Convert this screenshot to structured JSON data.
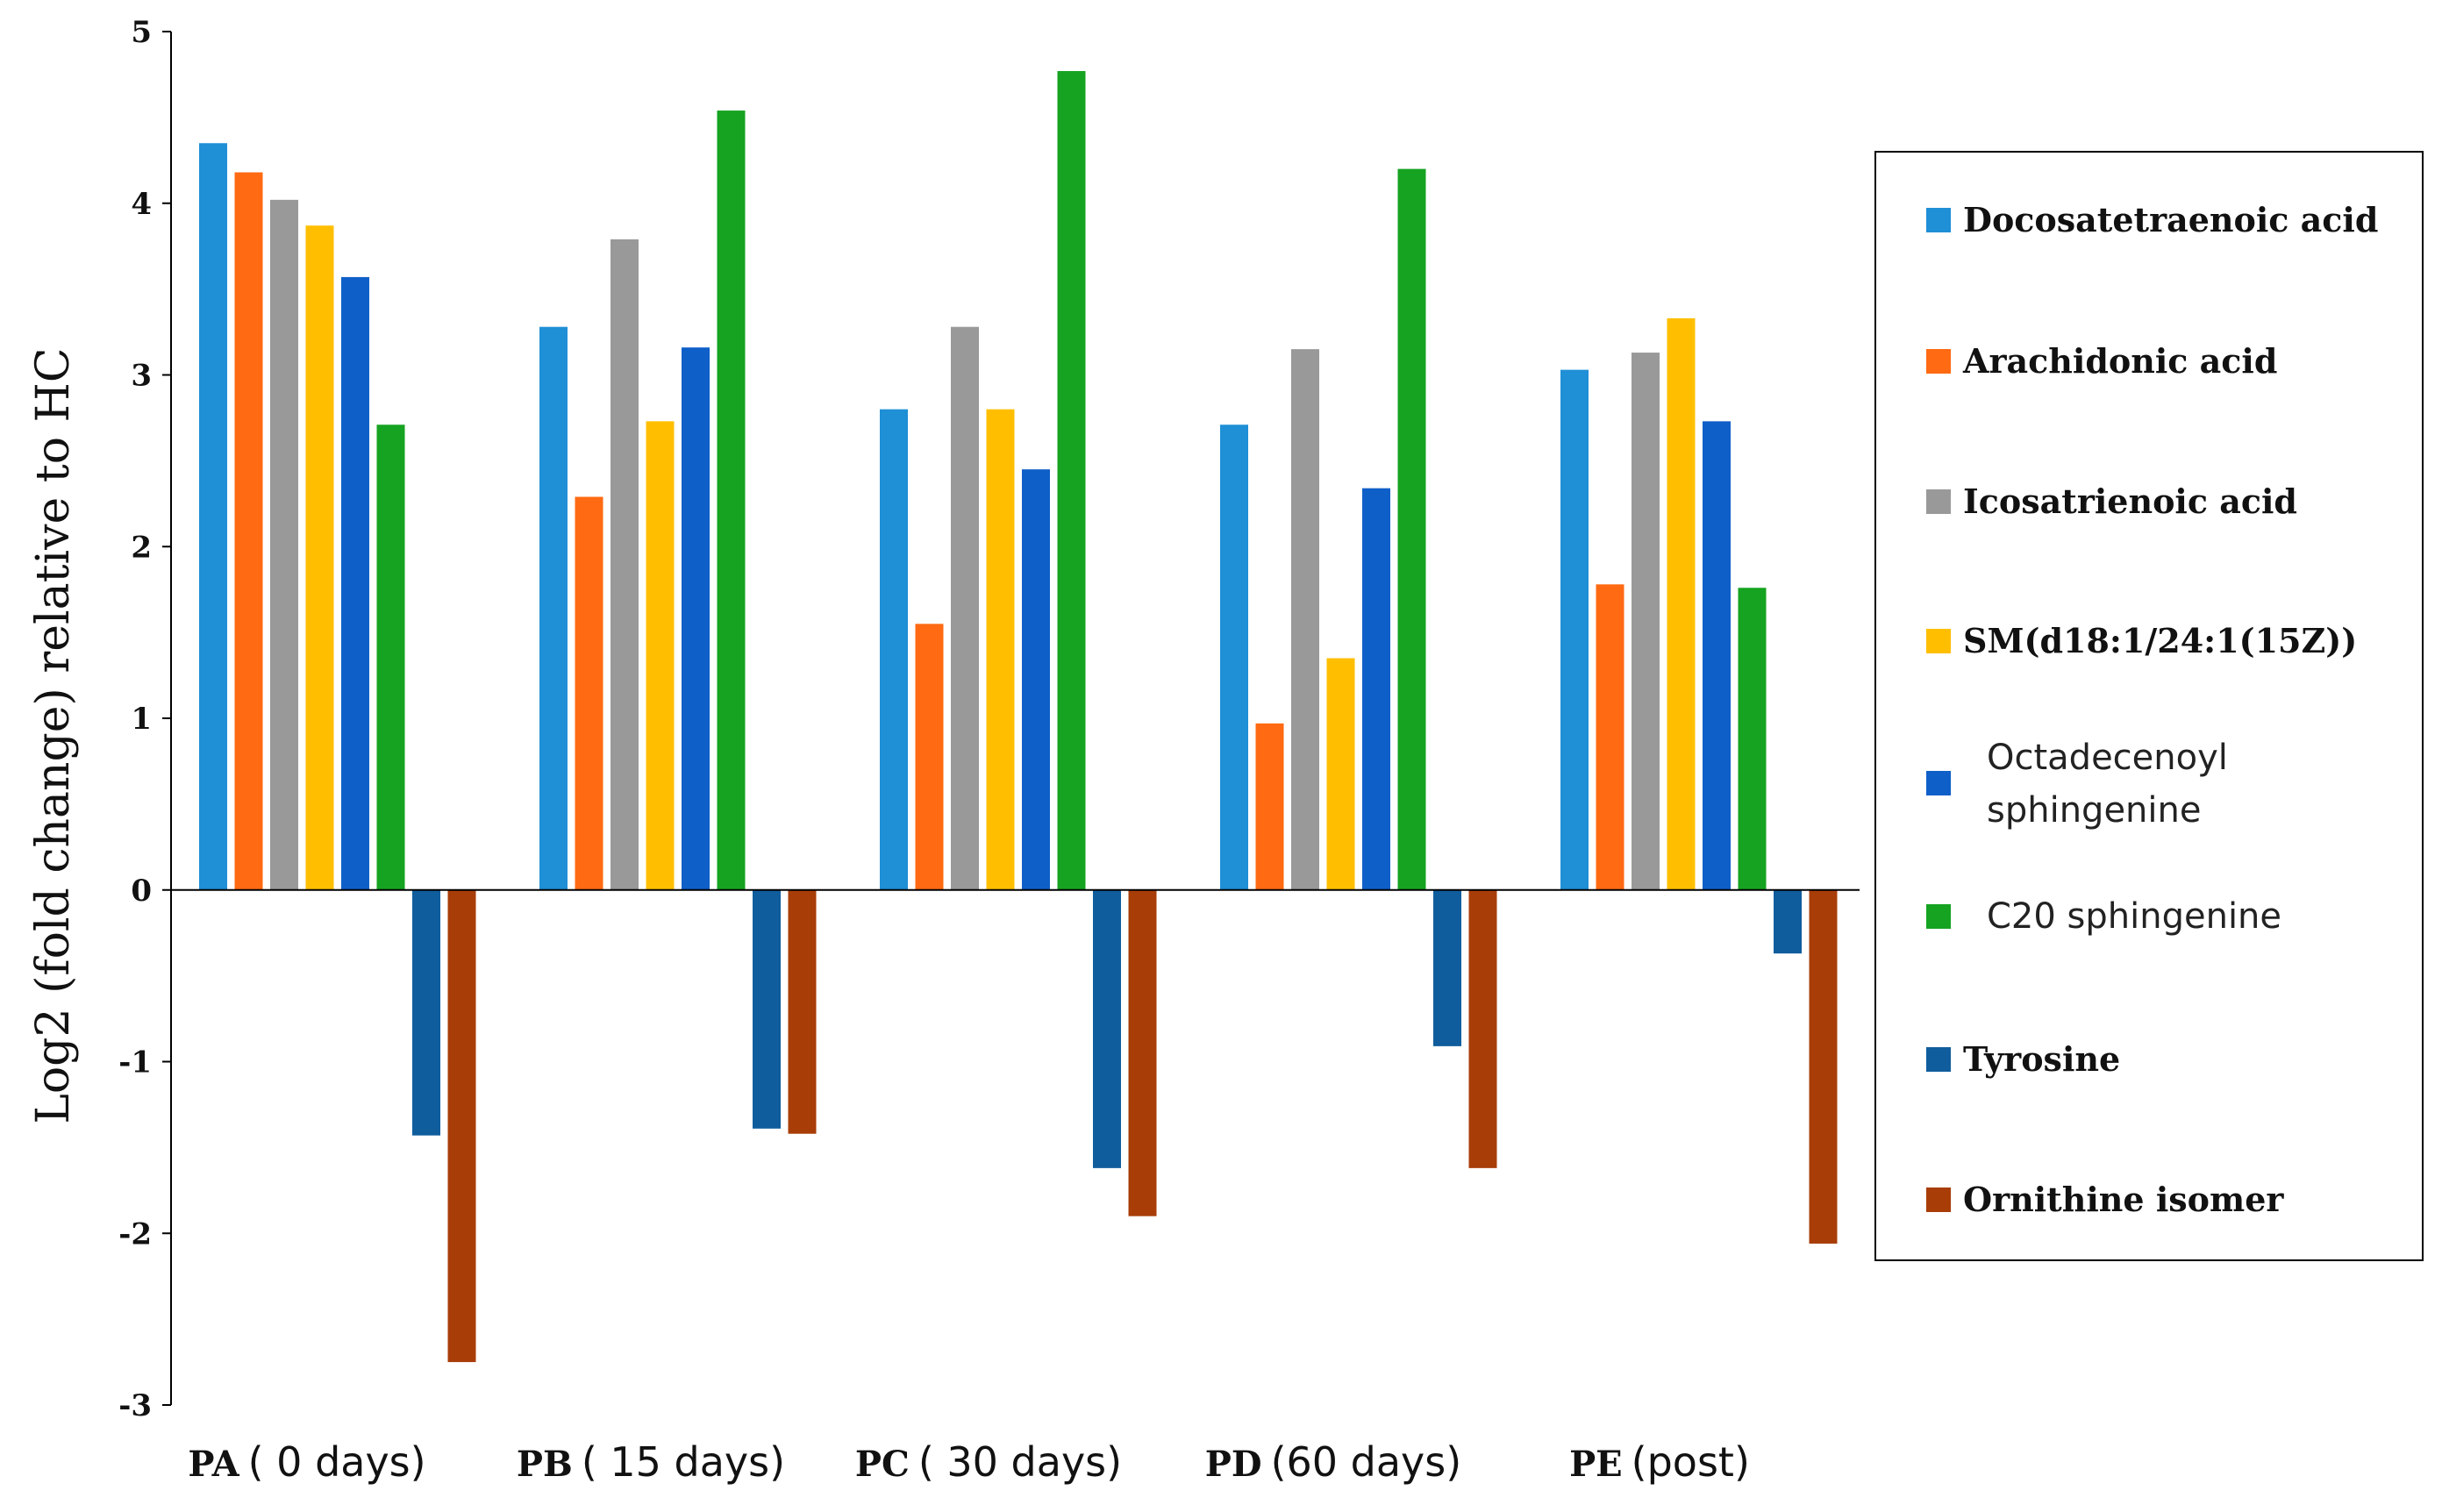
{
  "chart_data": {
    "type": "bar",
    "title": "",
    "xlabel": "",
    "ylabel": "Log2 (fold change) relative to HC",
    "ylim": [
      -3,
      5
    ],
    "yticks": [
      -3,
      -2,
      -1,
      0,
      1,
      2,
      3,
      4,
      5
    ],
    "grid": false,
    "legend_position": "right",
    "categories": [
      {
        "code": "PA",
        "desc": "( 0 days)"
      },
      {
        "code": "PB",
        "desc": "( 15 days)"
      },
      {
        "code": "PC",
        "desc": "( 30 days)"
      },
      {
        "code": "PD",
        "desc": "(60 days)"
      },
      {
        "code": "PE",
        "desc": "(post)"
      }
    ],
    "series": [
      {
        "name": "Docosatetraenoic acid",
        "color": "#1f8fd6",
        "legend_style": "serif",
        "values": [
          4.35,
          3.28,
          2.8,
          2.71,
          3.03
        ]
      },
      {
        "name": "Arachidonic acid",
        "color": "#ff6a13",
        "legend_style": "serif",
        "values": [
          4.18,
          2.29,
          1.55,
          0.97,
          1.78
        ]
      },
      {
        "name": "Icosatrienoic acid",
        "color": "#999999",
        "legend_style": "serif",
        "values": [
          4.02,
          3.79,
          3.28,
          3.15,
          3.13
        ]
      },
      {
        "name": "SM(d18:1/24:1(15Z))",
        "color": "#ffbf00",
        "legend_style": "serif",
        "values": [
          3.87,
          2.73,
          2.8,
          1.35,
          3.33
        ]
      },
      {
        "name": "Octadecenoyl sphingenine",
        "legend_lines": [
          "Octadecenoyl",
          "sphingenine"
        ],
        "color": "#0f5fc8",
        "legend_style": "sans",
        "values": [
          3.57,
          3.16,
          2.45,
          2.34,
          2.73
        ]
      },
      {
        "name": "C20 sphingenine",
        "color": "#16a321",
        "legend_style": "sans",
        "values": [
          2.71,
          4.54,
          4.77,
          4.2,
          1.76
        ]
      },
      {
        "name": "Tyrosine",
        "color": "#105d9d",
        "legend_style": "serif",
        "values": [
          -1.43,
          -1.39,
          -1.62,
          -0.91,
          -0.37
        ]
      },
      {
        "name": "Ornithine isomer",
        "color": "#a83d08",
        "legend_style": "serif",
        "values": [
          -2.75,
          -1.42,
          -1.9,
          -1.62,
          -2.06
        ]
      }
    ]
  }
}
